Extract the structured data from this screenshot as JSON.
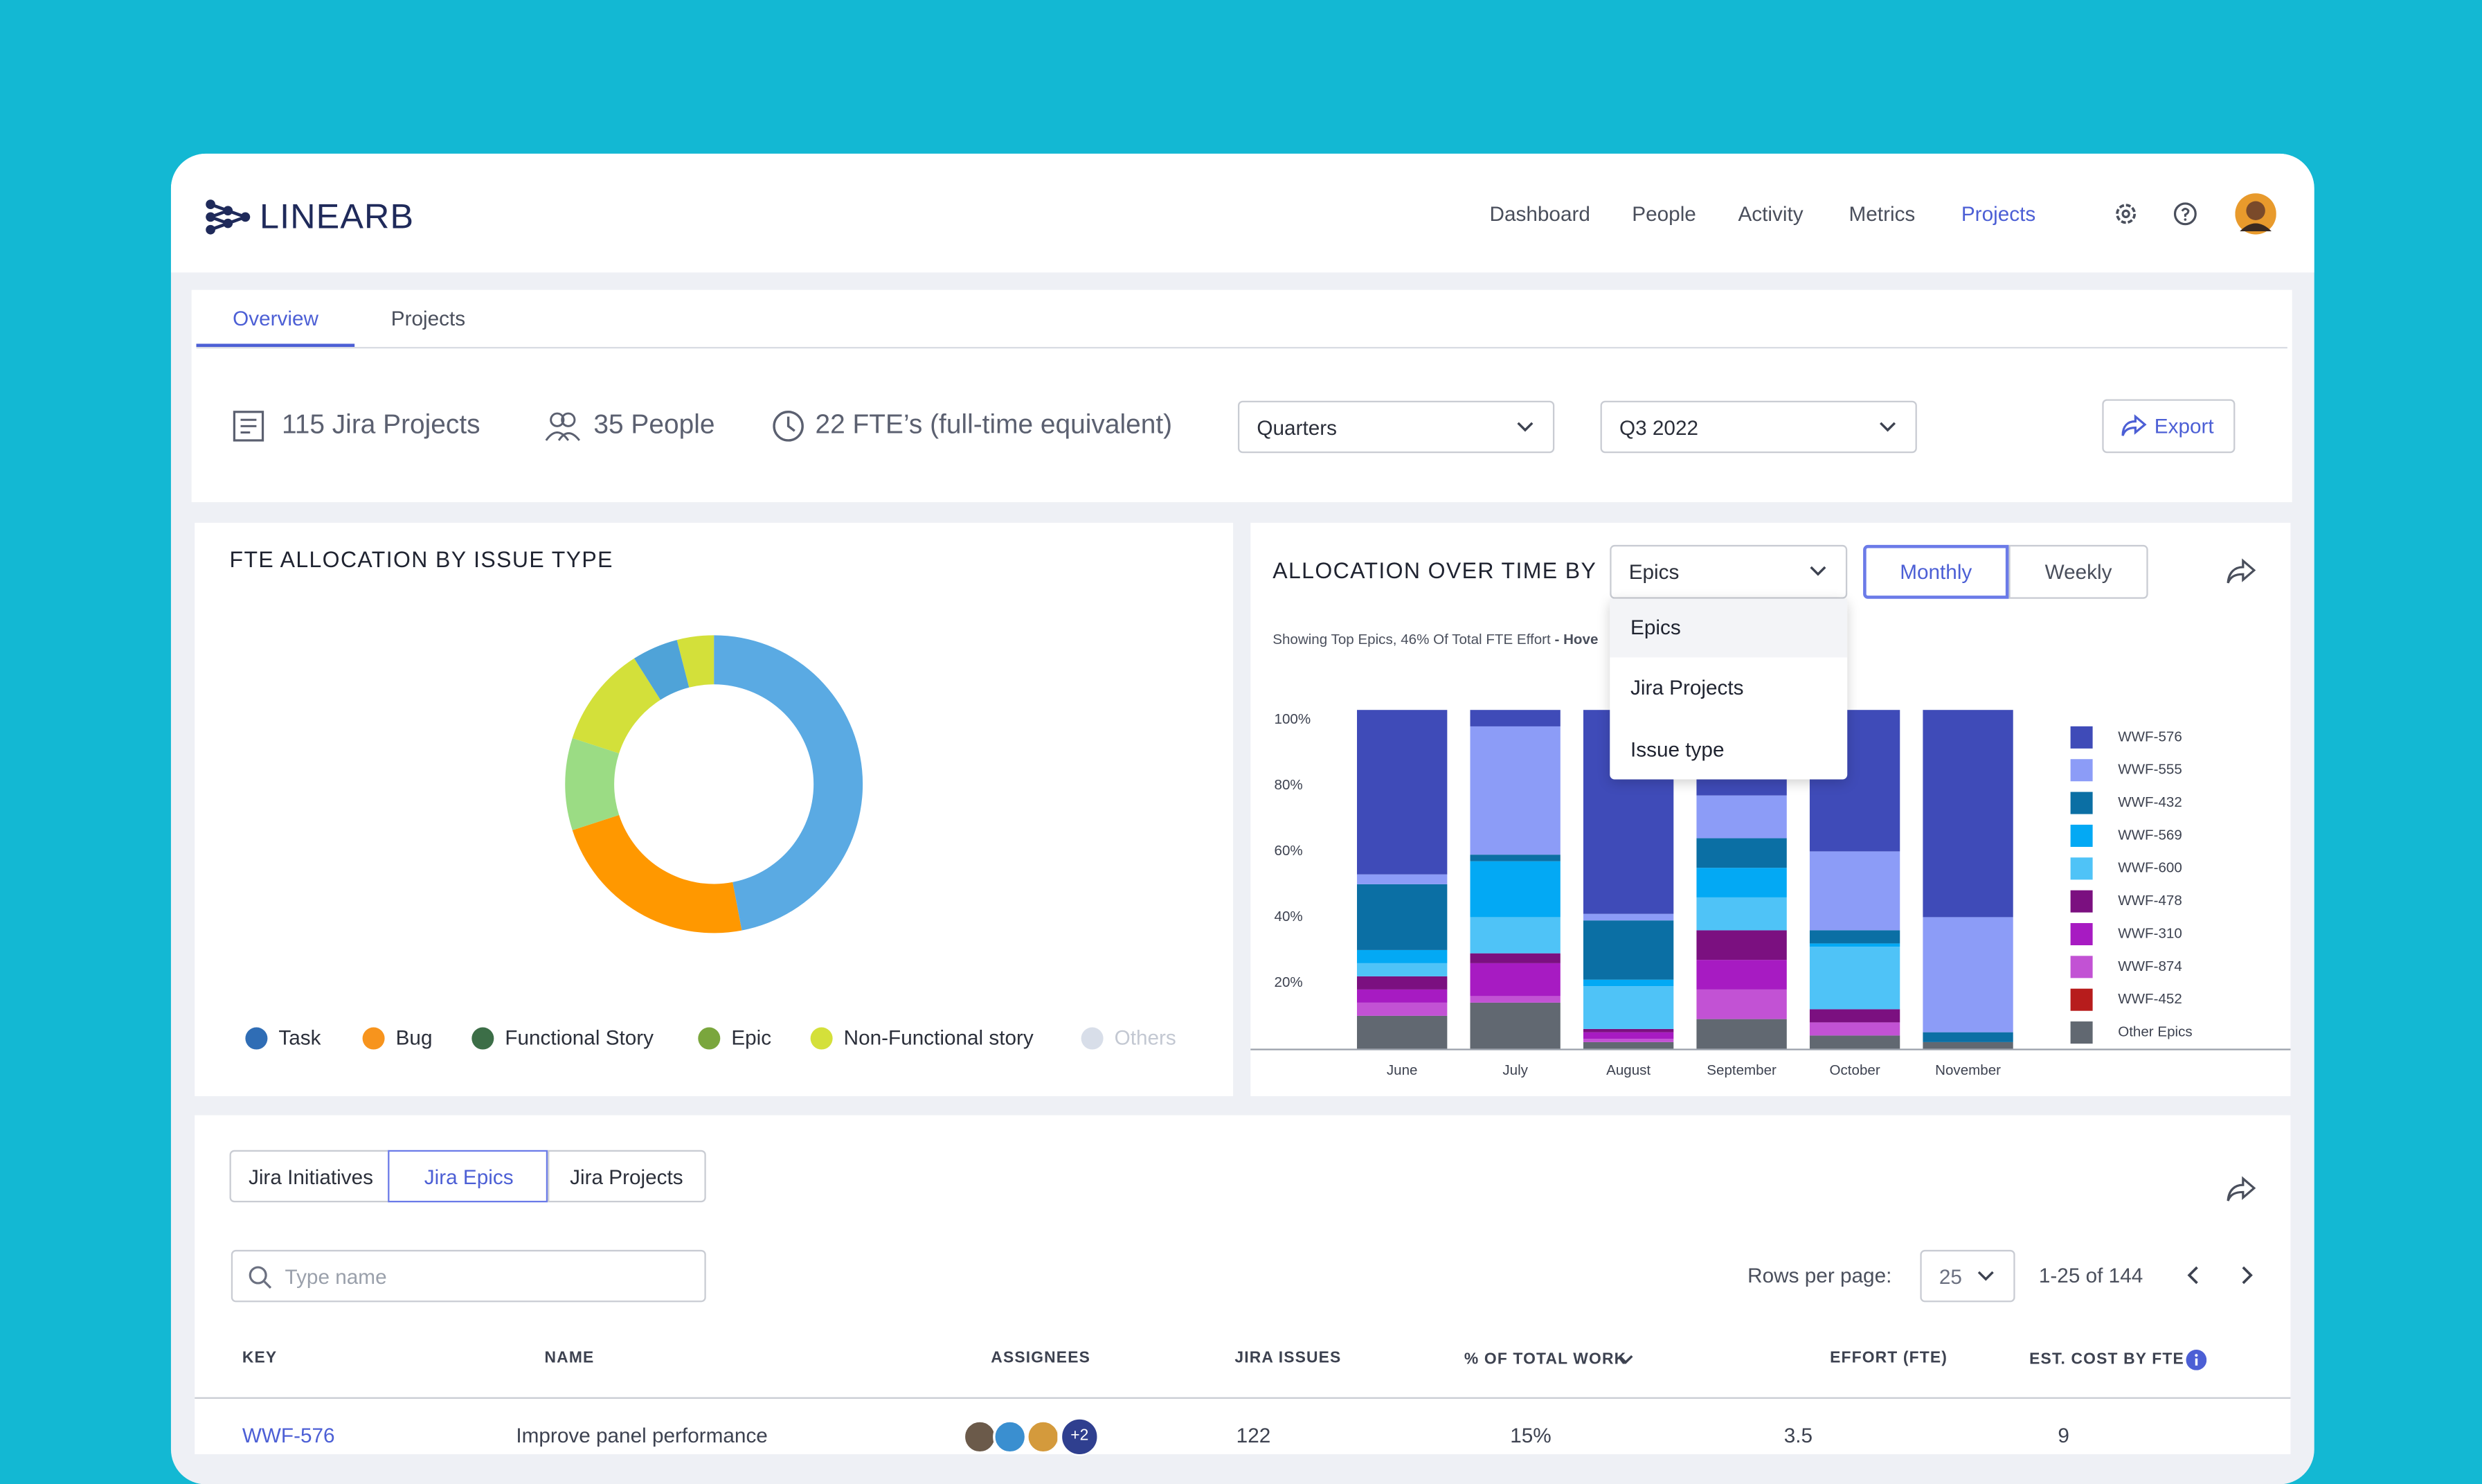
{
  "header": {
    "brand": "LINEARB",
    "nav": [
      "Dashboard",
      "People",
      "Activity",
      "Metrics",
      "Projects"
    ]
  },
  "tabs": [
    "Overview",
    "Projects"
  ],
  "summary": {
    "projects": "115 Jira Projects",
    "people": "35 People",
    "fte": "22 FTE’s (full-time equivalent)"
  },
  "filters": {
    "period": "Quarters",
    "quarter": "Q3 2022",
    "export": "Export"
  },
  "allocation_controls": {
    "select": "Epics",
    "options": [
      "Epics",
      "Jira Projects",
      "Issue type"
    ],
    "views": [
      "Monthly",
      "Weekly"
    ]
  },
  "chart_data": [
    {
      "type": "pie",
      "title": "FTE ALLOCATION BY ISSUE TYPE",
      "values": [
        47,
        23,
        10,
        11,
        5,
        4
      ],
      "colors": [
        "#5aaae3",
        "#ff9800",
        "#9bdc84",
        "#d3e03a",
        "#4fa3d8",
        "#d3e03a"
      ],
      "legend": [
        {
          "name": "Task",
          "color": "#2f6db5"
        },
        {
          "name": "Bug",
          "color": "#f7941d"
        },
        {
          "name": "Functional Story",
          "color": "#3c6e47"
        },
        {
          "name": "Epic",
          "color": "#7aa63d"
        },
        {
          "name": "Non-Functional story",
          "color": "#d4e03a"
        },
        {
          "name": "Others",
          "color": "#d8dee9"
        }
      ]
    },
    {
      "type": "bar",
      "stacked": true,
      "title": "ALLOCATION OVER TIME BY",
      "subtitle": "Showing Top Epics, 46% Of Total FTE Effort",
      "subtitle_hint": "- Hove",
      "categories": [
        "June",
        "July",
        "August",
        "September",
        "October",
        "November"
      ],
      "ylim": [
        0,
        105
      ],
      "yticks": [
        {
          "value": 20,
          "label": "20%"
        },
        {
          "value": 40,
          "label": "40%"
        },
        {
          "value": 60,
          "label": "60%"
        },
        {
          "value": 80,
          "label": "80%"
        },
        {
          "value": 100,
          "label": "100%"
        }
      ],
      "series": [
        {
          "name": "WWF-576",
          "color": "#3f4bb8",
          "values": [
            50,
            5,
            62,
            26,
            43,
            63
          ]
        },
        {
          "name": "WWF-555",
          "color": "#8c9cf7",
          "values": [
            3,
            39,
            2,
            13,
            24,
            35
          ]
        },
        {
          "name": "WWF-432",
          "color": "#0b6fa4",
          "values": [
            20,
            2,
            18,
            9,
            4,
            3
          ]
        },
        {
          "name": "WWF-569",
          "color": "#03a9f4",
          "values": [
            4,
            17,
            2,
            9,
            1,
            0
          ]
        },
        {
          "name": "WWF-600",
          "color": "#4fc3f7",
          "values": [
            4,
            11,
            13,
            10,
            19,
            0
          ]
        },
        {
          "name": "WWF-478",
          "color": "#7b1080",
          "values": [
            4,
            3,
            1,
            9,
            4,
            0
          ]
        },
        {
          "name": "WWF-310",
          "color": "#a71bc2",
          "values": [
            4,
            10,
            2,
            9,
            0,
            0
          ]
        },
        {
          "name": "WWF-874",
          "color": "#c252d4",
          "values": [
            4,
            2,
            1,
            9,
            4,
            0
          ]
        },
        {
          "name": "WWF-452",
          "color": "#b71c1c",
          "values": [
            0,
            0,
            0,
            0,
            0,
            0
          ]
        },
        {
          "name": "Other Epics",
          "color": "#616871",
          "values": [
            10,
            14,
            2,
            9,
            4,
            2
          ]
        }
      ]
    }
  ],
  "table_section": {
    "tabs": [
      "Jira Initiatives",
      "Jira Epics",
      "Jira Projects"
    ],
    "search_placeholder": "Type name",
    "rows_per_page_label": "Rows per page:",
    "rows_per_page": 25,
    "range": "1-25 of 144",
    "columns": [
      "KEY",
      "NAME",
      "ASSIGNEES",
      "JIRA ISSUES",
      "% OF TOTAL WORK",
      "EFFORT (FTE)",
      "EST. COST BY FTE"
    ],
    "rows": [
      [
        "WWF-576",
        "Improve panel performance",
        "+2",
        122,
        "15%",
        3.5,
        9
      ]
    ]
  }
}
